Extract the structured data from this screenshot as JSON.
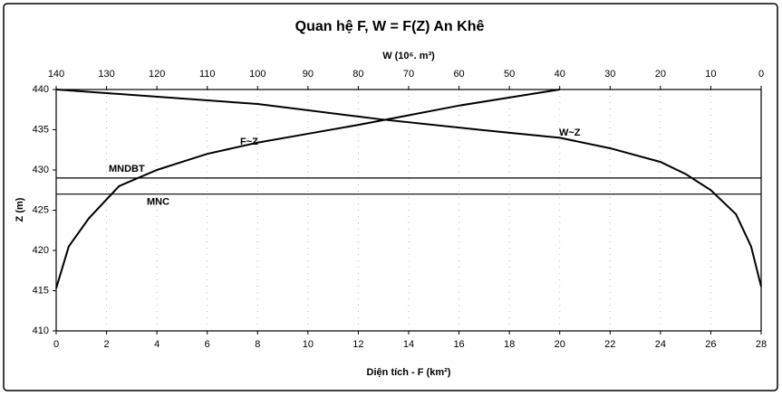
{
  "chart_data": {
    "type": "line",
    "title": "Quan hệ F, W = F(Z) An Khê",
    "xlabel": "Diện tích - F (km²)",
    "x2label": "W (10⁶. m³)",
    "ylabel": "Z (m)",
    "xlim": [
      0,
      28
    ],
    "xticks": [
      0,
      2,
      4,
      6,
      8,
      10,
      12,
      14,
      16,
      18,
      20,
      22,
      24,
      26,
      28
    ],
    "x2lim": [
      140,
      0
    ],
    "x2ticks": [
      140,
      130,
      120,
      110,
      100,
      90,
      80,
      70,
      60,
      50,
      40,
      30,
      20,
      10,
      0
    ],
    "ylim": [
      410,
      440
    ],
    "yticks": [
      410,
      415,
      420,
      425,
      430,
      435,
      440
    ],
    "grid": true,
    "series": [
      {
        "name": "F~Z",
        "color": "#000000",
        "x": [
          0,
          0.5,
          1.3,
          2.5,
          4,
          5,
          6,
          8,
          10,
          12,
          14,
          16,
          18,
          20
        ],
        "values": [
          415.3,
          420.5,
          424,
          428,
          430,
          431,
          432,
          433.4,
          434.5,
          435.6,
          436.8,
          438,
          439,
          440
        ]
      },
      {
        "name": "W~Z",
        "color": "#000000",
        "axis": "x2",
        "x": [
          140,
          100,
          75.6,
          56,
          40,
          30,
          20,
          15,
          10,
          5,
          2,
          0
        ],
        "values": [
          440,
          438.2,
          436.3,
          435,
          434,
          432.7,
          431,
          429.5,
          427.5,
          424.5,
          420.5,
          415.5
        ]
      }
    ],
    "hlines": [
      {
        "label": "MNDBT",
        "value": 429
      },
      {
        "label": "MNC",
        "value": 427
      }
    ]
  }
}
